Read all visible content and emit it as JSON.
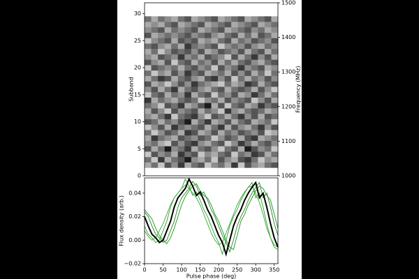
{
  "chart_data": [
    {
      "type": "heatmap",
      "ylabel": "Subband",
      "y2label": "Frequency (MHz)",
      "colormap": "gray_r",
      "xlim": [
        0,
        360
      ],
      "ylim": [
        0,
        32
      ],
      "yticks": [
        0,
        5,
        10,
        15,
        20,
        25,
        30
      ],
      "y2lim": [
        1000,
        1500
      ],
      "y2ticks": [
        1000,
        1100,
        1200,
        1300,
        1400,
        1500
      ],
      "x": [
        9,
        27,
        45,
        63,
        81,
        99,
        117,
        135,
        153,
        171,
        189,
        207,
        225,
        243,
        261,
        279,
        297,
        315,
        333,
        351
      ],
      "y": [
        2,
        3,
        4,
        5,
        6,
        7,
        8,
        9,
        10,
        11,
        12,
        13,
        14,
        15,
        16,
        17,
        18,
        19,
        20,
        21,
        22,
        23,
        24,
        25,
        26,
        27,
        28,
        29
      ],
      "z": [
        [
          3,
          5,
          2,
          6,
          4,
          7,
          3,
          5,
          6,
          2,
          4,
          5,
          3,
          7,
          2,
          6,
          4,
          3,
          5,
          6
        ],
        [
          5,
          2,
          7,
          3,
          5,
          6,
          8,
          4,
          3,
          5,
          2,
          6,
          4,
          3,
          6,
          7,
          5,
          2,
          4,
          3
        ],
        [
          2,
          6,
          4,
          5,
          3,
          7,
          5,
          6,
          2,
          4,
          3,
          5,
          6,
          2,
          5,
          4,
          7,
          6,
          3,
          5
        ],
        [
          6,
          3,
          5,
          8,
          4,
          5,
          7,
          3,
          5,
          6,
          4,
          2,
          5,
          6,
          3,
          8,
          6,
          4,
          5,
          2
        ],
        [
          4,
          5,
          3,
          2,
          6,
          4,
          6,
          7,
          4,
          3,
          5,
          6,
          2,
          4,
          7,
          5,
          3,
          5,
          6,
          4
        ],
        [
          3,
          7,
          5,
          4,
          3,
          6,
          5,
          4,
          6,
          5,
          2,
          4,
          6,
          5,
          3,
          6,
          7,
          3,
          4,
          5
        ],
        [
          5,
          2,
          4,
          6,
          5,
          3,
          7,
          6,
          3,
          4,
          6,
          3,
          5,
          4,
          6,
          5,
          4,
          6,
          2,
          3
        ],
        [
          2,
          4,
          6,
          3,
          7,
          5,
          4,
          5,
          6,
          3,
          5,
          7,
          3,
          6,
          4,
          3,
          5,
          7,
          4,
          6
        ],
        [
          6,
          5,
          3,
          5,
          4,
          6,
          8,
          3,
          5,
          7,
          3,
          4,
          6,
          3,
          5,
          6,
          3,
          4,
          5,
          2
        ],
        [
          4,
          3,
          5,
          7,
          2,
          5,
          6,
          7,
          4,
          2,
          6,
          5,
          3,
          5,
          7,
          4,
          6,
          3,
          6,
          5
        ],
        [
          3,
          6,
          4,
          2,
          6,
          4,
          5,
          6,
          3,
          5,
          4,
          2,
          7,
          4,
          3,
          5,
          6,
          5,
          3,
          4
        ],
        [
          5,
          4,
          2,
          6,
          5,
          7,
          3,
          4,
          6,
          8,
          3,
          6,
          2,
          5,
          6,
          3,
          4,
          7,
          5,
          6
        ],
        [
          7,
          3,
          5,
          4,
          3,
          5,
          6,
          5,
          2,
          4,
          5,
          3,
          6,
          4,
          5,
          6,
          2,
          4,
          6,
          3
        ],
        [
          2,
          5,
          6,
          3,
          5,
          4,
          7,
          3,
          5,
          6,
          2,
          5,
          4,
          6,
          3,
          4,
          7,
          5,
          3,
          5
        ],
        [
          4,
          6,
          3,
          5,
          7,
          3,
          5,
          6,
          4,
          3,
          5,
          6,
          3,
          5,
          6,
          5,
          3,
          6,
          4,
          2
        ],
        [
          6,
          3,
          4,
          2,
          4,
          6,
          4,
          7,
          5,
          4,
          3,
          2,
          5,
          3,
          4,
          7,
          6,
          3,
          5,
          6
        ],
        [
          3,
          5,
          7,
          6,
          3,
          5,
          6,
          4,
          3,
          6,
          7,
          4,
          6,
          2,
          5,
          3,
          5,
          4,
          6,
          4
        ],
        [
          5,
          2,
          4,
          3,
          6,
          4,
          7,
          5,
          6,
          3,
          4,
          5,
          3,
          6,
          4,
          6,
          3,
          5,
          2,
          5
        ],
        [
          2,
          6,
          5,
          4,
          5,
          3,
          5,
          6,
          4,
          5,
          2,
          6,
          4,
          5,
          7,
          4,
          5,
          6,
          3,
          4
        ],
        [
          6,
          4,
          3,
          6,
          2,
          5,
          6,
          3,
          5,
          4,
          6,
          3,
          5,
          3,
          5,
          6,
          4,
          3,
          5,
          6
        ],
        [
          4,
          3,
          6,
          5,
          4,
          7,
          4,
          5,
          3,
          6,
          5,
          4,
          2,
          6,
          3,
          5,
          7,
          4,
          6,
          3
        ],
        [
          3,
          5,
          2,
          4,
          6,
          5,
          6,
          4,
          6,
          3,
          4,
          6,
          5,
          4,
          6,
          3,
          5,
          6,
          3,
          5
        ],
        [
          5,
          6,
          4,
          3,
          5,
          3,
          7,
          5,
          4,
          5,
          6,
          2,
          4,
          5,
          4,
          6,
          4,
          3,
          5,
          4
        ],
        [
          2,
          4,
          5,
          6,
          3,
          6,
          5,
          6,
          3,
          4,
          3,
          5,
          6,
          3,
          5,
          4,
          6,
          5,
          4,
          6
        ],
        [
          6,
          3,
          4,
          5,
          4,
          5,
          6,
          4,
          5,
          6,
          4,
          3,
          5,
          6,
          3,
          5,
          3,
          6,
          5,
          3
        ],
        [
          4,
          5,
          6,
          3,
          5,
          4,
          5,
          6,
          3,
          4,
          5,
          6,
          3,
          4,
          5,
          6,
          4,
          5,
          3,
          4
        ],
        [
          3,
          4,
          3,
          5,
          6,
          3,
          4,
          5,
          6,
          3,
          4,
          5,
          6,
          3,
          4,
          5,
          6,
          3,
          4,
          5
        ],
        [
          5,
          3,
          5,
          4,
          3,
          5,
          6,
          3,
          4,
          5,
          6,
          3,
          4,
          5,
          6,
          3,
          4,
          5,
          6,
          3
        ]
      ]
    },
    {
      "type": "line",
      "xlabel": "Pulse phase (deg)",
      "ylabel": "Flux density (arb.)",
      "xlim": [
        0,
        360
      ],
      "xticks": [
        0,
        50,
        100,
        150,
        200,
        250,
        300,
        350
      ],
      "ylim": [
        -0.02,
        0.053
      ],
      "yticks": [
        {
          "value": -0.02,
          "label": "−0.02"
        },
        {
          "value": 0,
          "label": "0.00"
        },
        {
          "value": 0.02,
          "label": "0.02"
        },
        {
          "value": 0.04,
          "label": "0.04"
        }
      ],
      "x": [
        0,
        10,
        20,
        30,
        40,
        50,
        60,
        70,
        80,
        90,
        100,
        110,
        120,
        130,
        140,
        150,
        160,
        170,
        180,
        190,
        200,
        210,
        220,
        230,
        240,
        250,
        260,
        270,
        280,
        290,
        300,
        310,
        320,
        330,
        340,
        350,
        360
      ],
      "series": [
        {
          "color": "#2ca02c",
          "values": [
            0.012,
            0.005,
            0.002,
            -0.002,
            0.0,
            0.008,
            0.016,
            0.028,
            0.036,
            0.04,
            0.044,
            0.052,
            0.046,
            0.038,
            0.041,
            0.034,
            0.026,
            0.02,
            0.012,
            0.004,
            -0.002,
            -0.012,
            0.0,
            0.012,
            0.02,
            0.026,
            0.034,
            0.04,
            0.045,
            0.049,
            0.036,
            0.04,
            0.028,
            0.014,
            0.002,
            -0.006,
            -0.008
          ]
        },
        {
          "color": "#1a8a1a",
          "values": [
            0.024,
            0.02,
            0.012,
            0.005,
            0.002,
            -0.002,
            0.0,
            0.008,
            0.016,
            0.028,
            0.036,
            0.04,
            0.044,
            0.05,
            0.046,
            0.038,
            0.041,
            0.034,
            0.026,
            0.02,
            0.012,
            0.004,
            -0.002,
            -0.01,
            0.0,
            0.012,
            0.02,
            0.026,
            0.034,
            0.04,
            0.045,
            0.049,
            0.036,
            0.04,
            0.028,
            0.014,
            0.004
          ]
        },
        {
          "color": "#208f20",
          "values": [
            0.026,
            0.022,
            0.018,
            0.01,
            0.004,
            0.0,
            -0.003,
            0.002,
            0.01,
            0.02,
            0.03,
            0.037,
            0.042,
            0.046,
            0.048,
            0.042,
            0.038,
            0.036,
            0.03,
            0.022,
            0.016,
            0.008,
            0.0,
            -0.006,
            -0.008,
            0.004,
            0.016,
            0.022,
            0.03,
            0.036,
            0.042,
            0.046,
            0.044,
            0.038,
            0.034,
            0.022,
            0.01
          ]
        },
        {
          "color": "#33a833",
          "values": [
            0.008,
            0.003,
            0.0,
            0.002,
            0.008,
            0.014,
            0.022,
            0.03,
            0.036,
            0.04,
            0.044,
            0.047,
            0.044,
            0.04,
            0.036,
            0.03,
            0.022,
            0.014,
            0.006,
            0.0,
            -0.004,
            -0.002,
            0.006,
            0.014,
            0.022,
            0.03,
            0.036,
            0.041,
            0.045,
            0.046,
            0.04,
            0.032,
            0.022,
            0.01,
            0.002,
            -0.004,
            -0.006
          ]
        },
        {
          "color": "#000000",
          "values": [
            0.02,
            0.012,
            0.005,
            0.002,
            -0.002,
            0.0,
            0.008,
            0.016,
            0.028,
            0.036,
            0.04,
            0.044,
            0.052,
            0.046,
            0.038,
            0.041,
            0.034,
            0.026,
            0.02,
            0.012,
            0.004,
            -0.002,
            -0.012,
            0.0,
            0.012,
            0.02,
            0.026,
            0.034,
            0.04,
            0.045,
            0.049,
            0.036,
            0.04,
            0.028,
            0.014,
            0.002,
            -0.006
          ]
        }
      ]
    }
  ]
}
